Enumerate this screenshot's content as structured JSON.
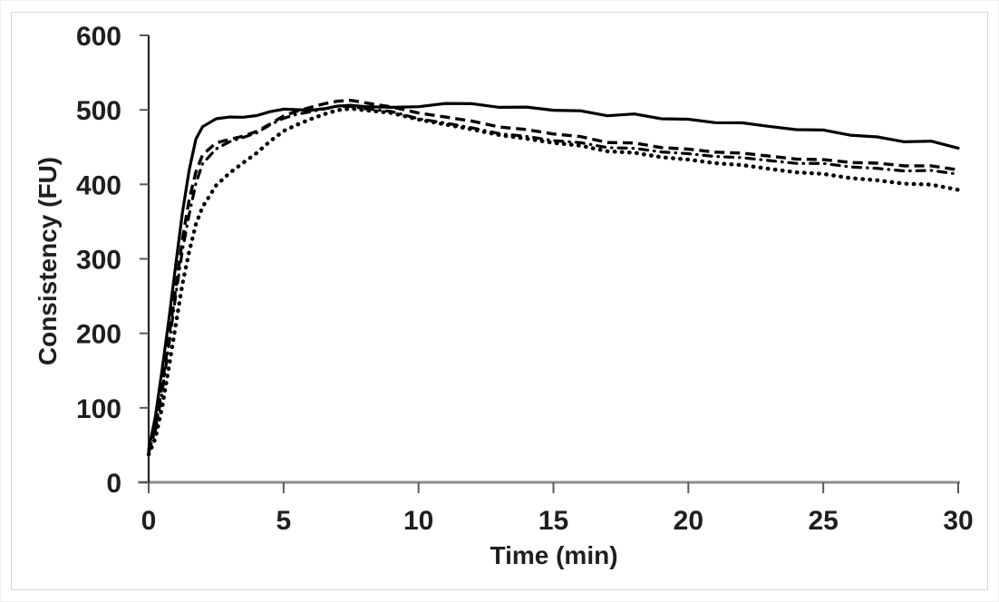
{
  "chart_data": {
    "type": "line",
    "title": "",
    "xlabel": "Time (min)",
    "ylabel": "Consistency (FU)",
    "xlim": [
      0,
      30
    ],
    "ylim": [
      0,
      600
    ],
    "xticks": [
      0,
      5,
      10,
      15,
      20,
      25,
      30
    ],
    "yticks": [
      0,
      100,
      200,
      300,
      400,
      500,
      600
    ],
    "grid": false,
    "legend": "none",
    "colors": {
      "line": "#000000",
      "x_axis_line": "#8c8c8c",
      "y_axis_line": "#262626",
      "tick_mark": "#595959",
      "tick_label": "#1f1f1f",
      "frame_border": "#d9d9d9"
    },
    "series": [
      {
        "name": "series-solid",
        "style": "solid",
        "stroke_width": 3.2,
        "dash": "",
        "cap": "round",
        "jitter": 1.6,
        "points": [
          [
            0,
            45
          ],
          [
            0.25,
            90
          ],
          [
            0.5,
            150
          ],
          [
            0.75,
            220
          ],
          [
            1,
            290
          ],
          [
            1.25,
            360
          ],
          [
            1.5,
            420
          ],
          [
            1.75,
            458
          ],
          [
            2,
            478
          ],
          [
            2.5,
            487
          ],
          [
            3,
            490
          ],
          [
            3.5,
            492
          ],
          [
            4,
            494
          ],
          [
            4.5,
            496
          ],
          [
            5,
            498
          ],
          [
            5.5,
            500
          ],
          [
            6,
            502
          ],
          [
            6.5,
            503
          ],
          [
            7,
            504
          ],
          [
            7.5,
            505
          ],
          [
            8,
            505
          ],
          [
            9,
            502
          ],
          [
            10,
            506
          ],
          [
            11,
            508
          ],
          [
            12,
            507
          ],
          [
            13,
            505
          ],
          [
            14,
            503
          ],
          [
            15,
            500
          ],
          [
            16,
            497
          ],
          [
            17,
            495
          ],
          [
            18,
            492
          ],
          [
            19,
            489
          ],
          [
            20,
            487
          ],
          [
            21,
            484
          ],
          [
            22,
            481
          ],
          [
            23,
            478
          ],
          [
            24,
            475
          ],
          [
            25,
            471
          ],
          [
            26,
            467
          ],
          [
            27,
            463
          ],
          [
            28,
            459
          ],
          [
            29,
            455
          ],
          [
            30,
            451
          ]
        ]
      },
      {
        "name": "series-dashed",
        "style": "dashed",
        "stroke_width": 3.4,
        "dash": "11 6",
        "cap": "butt",
        "jitter": 1.0,
        "points": [
          [
            0,
            40
          ],
          [
            0.25,
            75
          ],
          [
            0.5,
            130
          ],
          [
            0.75,
            195
          ],
          [
            1,
            260
          ],
          [
            1.25,
            325
          ],
          [
            1.5,
            380
          ],
          [
            1.75,
            415
          ],
          [
            2,
            440
          ],
          [
            2.5,
            455
          ],
          [
            3,
            460
          ],
          [
            3.5,
            466
          ],
          [
            4,
            472
          ],
          [
            4.5,
            480
          ],
          [
            5,
            490
          ],
          [
            5.5,
            498
          ],
          [
            6,
            505
          ],
          [
            6.5,
            509
          ],
          [
            7,
            511
          ],
          [
            7.5,
            512
          ],
          [
            8,
            510
          ],
          [
            9,
            503
          ],
          [
            10,
            497
          ],
          [
            11,
            490
          ],
          [
            12,
            484
          ],
          [
            13,
            478
          ],
          [
            14,
            473
          ],
          [
            15,
            468
          ],
          [
            16,
            463
          ],
          [
            17,
            458
          ],
          [
            18,
            454
          ],
          [
            19,
            450
          ],
          [
            20,
            447
          ],
          [
            21,
            444
          ],
          [
            22,
            441
          ],
          [
            23,
            438
          ],
          [
            24,
            435
          ],
          [
            25,
            432
          ],
          [
            26,
            430
          ],
          [
            27,
            428
          ],
          [
            28,
            426
          ],
          [
            29,
            423
          ],
          [
            30,
            421
          ]
        ]
      },
      {
        "name": "series-dash-dot",
        "style": "dash-dot",
        "stroke_width": 3.2,
        "dash": "9 7 0.6 7",
        "cap": "round",
        "jitter": 0.9,
        "points": [
          [
            0,
            42
          ],
          [
            0.25,
            70
          ],
          [
            0.5,
            120
          ],
          [
            0.75,
            185
          ],
          [
            1,
            250
          ],
          [
            1.25,
            310
          ],
          [
            1.5,
            360
          ],
          [
            1.75,
            400
          ],
          [
            2,
            428
          ],
          [
            2.5,
            447
          ],
          [
            3,
            457
          ],
          [
            3.5,
            464
          ],
          [
            4,
            470
          ],
          [
            4.5,
            479
          ],
          [
            5,
            487
          ],
          [
            5.5,
            494
          ],
          [
            6,
            499
          ],
          [
            6.5,
            502
          ],
          [
            7,
            504
          ],
          [
            7.5,
            504
          ],
          [
            8,
            502
          ],
          [
            9,
            497
          ],
          [
            10,
            489
          ],
          [
            11,
            482
          ],
          [
            12,
            475
          ],
          [
            13,
            469
          ],
          [
            14,
            464
          ],
          [
            15,
            459
          ],
          [
            16,
            455
          ],
          [
            17,
            451
          ],
          [
            18,
            447
          ],
          [
            19,
            444
          ],
          [
            20,
            441
          ],
          [
            21,
            438
          ],
          [
            22,
            435
          ],
          [
            23,
            432
          ],
          [
            24,
            429
          ],
          [
            25,
            427
          ],
          [
            26,
            424
          ],
          [
            27,
            421
          ],
          [
            28,
            419
          ],
          [
            29,
            417
          ],
          [
            30,
            415
          ]
        ]
      },
      {
        "name": "series-dotted",
        "style": "dotted",
        "stroke_width": 4.4,
        "dash": "0.5 7.6",
        "cap": "round",
        "jitter": 0.9,
        "points": [
          [
            0,
            38
          ],
          [
            0.25,
            60
          ],
          [
            0.5,
            100
          ],
          [
            0.75,
            155
          ],
          [
            1,
            210
          ],
          [
            1.25,
            265
          ],
          [
            1.5,
            310
          ],
          [
            1.75,
            345
          ],
          [
            2,
            370
          ],
          [
            2.5,
            398
          ],
          [
            3,
            415
          ],
          [
            3.5,
            430
          ],
          [
            4,
            443
          ],
          [
            4.5,
            457
          ],
          [
            5,
            470
          ],
          [
            5.5,
            480
          ],
          [
            6,
            489
          ],
          [
            6.5,
            495
          ],
          [
            7,
            499
          ],
          [
            7.5,
            501
          ],
          [
            8,
            500
          ],
          [
            9,
            495
          ],
          [
            10,
            488
          ],
          [
            11,
            480
          ],
          [
            12,
            473
          ],
          [
            13,
            467
          ],
          [
            14,
            461
          ],
          [
            15,
            456
          ],
          [
            16,
            451
          ],
          [
            17,
            446
          ],
          [
            18,
            441
          ],
          [
            19,
            437
          ],
          [
            20,
            433
          ],
          [
            21,
            429
          ],
          [
            22,
            425
          ],
          [
            23,
            421
          ],
          [
            24,
            417
          ],
          [
            25,
            413
          ],
          [
            26,
            409
          ],
          [
            27,
            405
          ],
          [
            28,
            402
          ],
          [
            29,
            398
          ],
          [
            30,
            394
          ]
        ]
      }
    ]
  }
}
